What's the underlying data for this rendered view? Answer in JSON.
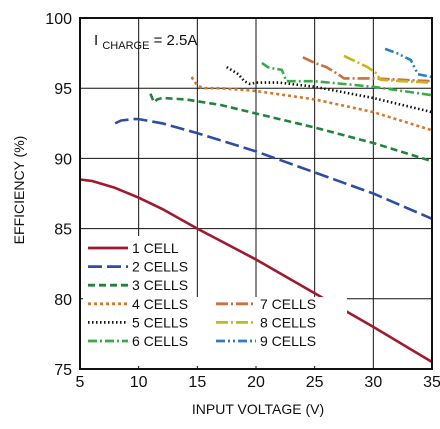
{
  "chart_data": {
    "type": "line",
    "title": "",
    "xlabel": "INPUT VOLTAGE (V)",
    "ylabel": "EFFICIENCY (%)",
    "xlim": [
      5,
      35
    ],
    "ylim": [
      75,
      100
    ],
    "xticks": [
      "5",
      "10",
      "15",
      "20",
      "25",
      "30",
      "35"
    ],
    "yticks": [
      "100",
      "95",
      "90",
      "85",
      "80",
      "75"
    ],
    "grid": true,
    "legend_position": "bottom-left",
    "annotation": {
      "prefix": "I",
      "subscript": "CHARGE",
      "suffix": " = 2.5A"
    },
    "series": [
      {
        "name": "1 CELL",
        "color": "#a0192e",
        "dash": "solid",
        "x": [
          5,
          6,
          8,
          10,
          12,
          15,
          20,
          25,
          30,
          35
        ],
        "y": [
          88.5,
          88.4,
          87.9,
          87.2,
          86.4,
          85.0,
          82.8,
          80.4,
          78.0,
          75.5
        ]
      },
      {
        "name": "2 CELLS",
        "color": "#2c4fa3",
        "dash": "longdash",
        "x": [
          8,
          8.5,
          9.5,
          10,
          12,
          15,
          20,
          25,
          30,
          35
        ],
        "y": [
          92.5,
          92.7,
          92.8,
          92.8,
          92.5,
          91.8,
          90.5,
          89.0,
          87.5,
          85.7
        ]
      },
      {
        "name": "3 CELLS",
        "color": "#23833c",
        "dash": "dash",
        "x": [
          11,
          11.3,
          11.6,
          12,
          14,
          17,
          20,
          25,
          30,
          35
        ],
        "y": [
          94.6,
          94.0,
          94.2,
          94.3,
          94.2,
          93.8,
          93.2,
          92.2,
          91.1,
          89.8
        ]
      },
      {
        "name": "4 CELLS",
        "color": "#d27a2c",
        "dash": "shortdash",
        "x": [
          14.5,
          15,
          15.5,
          17,
          20,
          25,
          30,
          35
        ],
        "y": [
          95.8,
          95.2,
          95.0,
          95.0,
          94.8,
          94.2,
          93.3,
          92.0
        ]
      },
      {
        "name": "5 CELLS",
        "color": "#111111",
        "dash": "dot",
        "x": [
          17.5,
          18.5,
          19,
          19.5,
          20,
          22,
          25,
          30,
          35
        ],
        "y": [
          96.5,
          96.0,
          95.5,
          95.3,
          95.4,
          95.4,
          95.1,
          94.3,
          93.3
        ]
      },
      {
        "name": "6 CELLS",
        "color": "#3aaa48",
        "dash": "dashdot",
        "x": [
          20.5,
          21,
          21.5,
          22.2,
          22.6,
          25,
          30,
          35
        ],
        "y": [
          96.8,
          96.5,
          96.4,
          96.3,
          95.5,
          95.5,
          95.1,
          94.5
        ]
      },
      {
        "name": "7 CELLS",
        "color": "#c9703e",
        "dash": "longdashdot",
        "x": [
          24,
          25,
          26,
          27,
          27.5,
          30,
          35
        ],
        "y": [
          97.2,
          96.8,
          96.5,
          96.0,
          95.7,
          95.7,
          95.5
        ]
      },
      {
        "name": "8 CELLS",
        "color": "#c9b41e",
        "dash": "longdashdot",
        "x": [
          27.5,
          28.5,
          29.5,
          30.2,
          30.6,
          32.5,
          35
        ],
        "y": [
          97.3,
          96.9,
          96.5,
          96.1,
          95.6,
          95.5,
          95.4
        ]
      },
      {
        "name": "9 CELLS",
        "color": "#2e7dc2",
        "dash": "dashdotdot",
        "x": [
          31,
          32,
          33.2,
          33.8,
          35
        ],
        "y": [
          97.8,
          97.5,
          97.0,
          96.0,
          95.8
        ]
      }
    ]
  }
}
